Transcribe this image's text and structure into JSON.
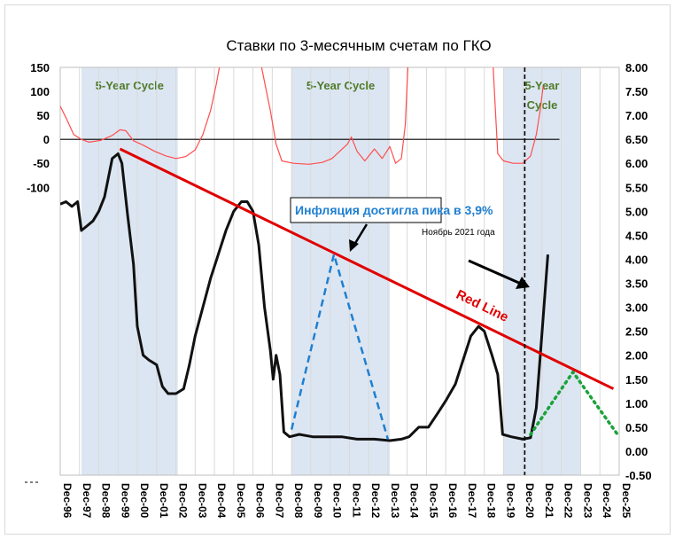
{
  "chart_data": {
    "type": "line",
    "title": "Ставки по 3-месячным счетам по ГКО",
    "y_left": {
      "ticks": [
        "150",
        "100",
        "50",
        "0",
        "-50",
        "-100"
      ],
      "range": [
        -100,
        150
      ]
    },
    "y_right": {
      "ticks": [
        "8.00",
        "7.50",
        "7.00",
        "6.50",
        "6.00",
        "5.50",
        "5.00",
        "4.50",
        "4.00",
        "3.50",
        "3.00",
        "2.50",
        "2.00",
        "1.50",
        "1.00",
        "0.50",
        "0.00",
        "-0.50"
      ],
      "range": [
        -0.5,
        8.0
      ]
    },
    "x_ticks": [
      "Dec-96",
      "Dec-97",
      "Dec-98",
      "Dec-99",
      "Dec-00",
      "Dec-01",
      "Dec-02",
      "Dec-03",
      "Dec-04",
      "Dec-05",
      "Dec-06",
      "Dec-07",
      "Dec-08",
      "Dec-09",
      "Dec-10",
      "Dec-11",
      "Dec-12",
      "Dec-13",
      "Dec-14",
      "Dec-15",
      "Dec-16",
      "Dec-17",
      "Dec-18",
      "Dec-19",
      "Dec-20",
      "Dec-21",
      "Dec-22",
      "Dec-23",
      "Dec-24",
      "Dec-25"
    ],
    "cycles": [
      {
        "label": "5-Year Cycle",
        "x": [
          1998.0,
          2003.0
        ]
      },
      {
        "label": "5-Year Cycle",
        "x": [
          2008.9,
          2014.0
        ]
      },
      {
        "label": "5-Year Cycle",
        "x": [
          2019.9,
          2023.9
        ]
      }
    ],
    "cycle_label_lines": [
      [
        "5-Year Cycle"
      ],
      [
        "5-Year Cycle"
      ],
      [
        "5-Year",
        "Cycle"
      ]
    ],
    "series": [
      {
        "name": "",
        "axis": "right",
        "color": "#111111",
        "points": [
          [
            1996.9,
            5.15
          ],
          [
            1997.2,
            5.2
          ],
          [
            1997.5,
            5.1
          ],
          [
            1997.8,
            5.2
          ],
          [
            1998.0,
            4.6
          ],
          [
            1998.3,
            4.7
          ],
          [
            1998.6,
            4.8
          ],
          [
            1998.9,
            5.0
          ],
          [
            1999.2,
            5.3
          ],
          [
            1999.6,
            6.1
          ],
          [
            1999.9,
            6.2
          ],
          [
            2000.1,
            6.0
          ],
          [
            2000.4,
            4.9
          ],
          [
            2000.7,
            3.9
          ],
          [
            2000.9,
            2.6
          ],
          [
            2001.2,
            2.0
          ],
          [
            2001.5,
            1.9
          ],
          [
            2001.9,
            1.8
          ],
          [
            2002.2,
            1.35
          ],
          [
            2002.5,
            1.2
          ],
          [
            2002.9,
            1.2
          ],
          [
            2003.3,
            1.3
          ],
          [
            2003.6,
            1.8
          ],
          [
            2003.9,
            2.4
          ],
          [
            2004.3,
            3.0
          ],
          [
            2004.7,
            3.6
          ],
          [
            2005.1,
            4.1
          ],
          [
            2005.5,
            4.6
          ],
          [
            2005.9,
            5.0
          ],
          [
            2006.3,
            5.2
          ],
          [
            2006.6,
            5.2
          ],
          [
            2006.9,
            5.0
          ],
          [
            2007.2,
            4.3
          ],
          [
            2007.5,
            3.0
          ],
          [
            2007.8,
            2.1
          ],
          [
            2007.95,
            1.5
          ],
          [
            2008.1,
            2.0
          ],
          [
            2008.3,
            1.6
          ],
          [
            2008.5,
            0.4
          ],
          [
            2008.8,
            0.3
          ],
          [
            2009.3,
            0.35
          ],
          [
            2010.0,
            0.3
          ],
          [
            2010.8,
            0.3
          ],
          [
            2011.5,
            0.3
          ],
          [
            2012.3,
            0.25
          ],
          [
            2013.2,
            0.25
          ],
          [
            2014.0,
            0.22
          ],
          [
            2014.6,
            0.25
          ],
          [
            2015.0,
            0.3
          ],
          [
            2015.5,
            0.5
          ],
          [
            2016.0,
            0.5
          ],
          [
            2016.5,
            0.8
          ],
          [
            2016.9,
            1.05
          ],
          [
            2017.4,
            1.4
          ],
          [
            2017.8,
            1.9
          ],
          [
            2018.2,
            2.4
          ],
          [
            2018.6,
            2.6
          ],
          [
            2018.9,
            2.5
          ],
          [
            2019.3,
            2.0
          ],
          [
            2019.6,
            1.6
          ],
          [
            2019.85,
            0.35
          ],
          [
            2020.3,
            0.3
          ],
          [
            2020.9,
            0.25
          ],
          [
            2021.3,
            0.28
          ],
          [
            2021.6,
            0.9
          ],
          [
            2021.9,
            2.5
          ],
          [
            2022.2,
            4.1
          ]
        ]
      },
      {
        "name": "",
        "axis": "left",
        "color": "#ff4d4d",
        "points": [
          [
            1996.9,
            69
          ],
          [
            1997.2,
            45
          ],
          [
            1997.6,
            10
          ],
          [
            1998.0,
            0
          ],
          [
            1998.4,
            -6
          ],
          [
            1999.0,
            -2
          ],
          [
            1999.6,
            8
          ],
          [
            2000.0,
            20
          ],
          [
            2000.3,
            18
          ],
          [
            2000.7,
            -3
          ],
          [
            2001.2,
            -12
          ],
          [
            2001.8,
            -25
          ],
          [
            2002.4,
            -35
          ],
          [
            2002.9,
            -40
          ],
          [
            2003.4,
            -36
          ],
          [
            2003.9,
            -22
          ],
          [
            2004.3,
            10
          ],
          [
            2004.7,
            60
          ],
          [
            2005.0,
            115
          ],
          [
            2005.2,
            160
          ]
        ]
      },
      {
        "name": "",
        "axis": "left",
        "color": "#ff4d4d",
        "points": [
          [
            2007.3,
            160
          ],
          [
            2007.5,
            120
          ],
          [
            2007.8,
            60
          ],
          [
            2008.1,
            -10
          ],
          [
            2008.4,
            -45
          ],
          [
            2009.0,
            -50
          ],
          [
            2009.8,
            -52
          ],
          [
            2010.5,
            -48
          ],
          [
            2011.0,
            -40
          ],
          [
            2011.4,
            -25
          ],
          [
            2011.8,
            -10
          ],
          [
            2012.0,
            5
          ],
          [
            2012.3,
            -25
          ],
          [
            2012.7,
            -45
          ],
          [
            2013.2,
            -20
          ],
          [
            2013.6,
            -40
          ],
          [
            2014.0,
            -15
          ],
          [
            2014.3,
            -50
          ],
          [
            2014.6,
            -40
          ],
          [
            2014.8,
            30
          ],
          [
            2014.95,
            160
          ]
        ]
      },
      {
        "name": "",
        "axis": "left",
        "color": "#ff4d4d",
        "points": [
          [
            2019.35,
            160
          ],
          [
            2019.45,
            80
          ],
          [
            2019.6,
            -30
          ],
          [
            2019.9,
            -45
          ],
          [
            2020.4,
            -50
          ],
          [
            2020.9,
            -50
          ],
          [
            2021.3,
            -35
          ],
          [
            2021.6,
            10
          ],
          [
            2021.8,
            60
          ],
          [
            2021.95,
            110
          ]
        ]
      }
    ],
    "baseline_left_zero": {
      "x": [
        1996.9,
        2022.8
      ],
      "y": 0
    },
    "red_line": {
      "label": "Red Line",
      "color": "#e00000",
      "from": [
        2000.0,
        6.3
      ],
      "to": [
        2025.6,
        1.3
      ]
    },
    "inflation_triangle": {
      "color": "#1f7fd1",
      "points": [
        [
          2008.9,
          0.45
        ],
        [
          2011.1,
          4.1
        ],
        [
          2013.9,
          0.25
        ]
      ]
    },
    "forecast_triangle": {
      "color": "#1aa33b",
      "points": [
        [
          2021.3,
          0.35
        ],
        [
          2023.5,
          1.65
        ],
        [
          2025.9,
          0.3
        ]
      ]
    },
    "vertical_marker_x": 2021.0,
    "callout": {
      "text": "Инфляция достигла пика в 3,9%",
      "subtext": "Ноябрь 2021 года"
    }
  }
}
